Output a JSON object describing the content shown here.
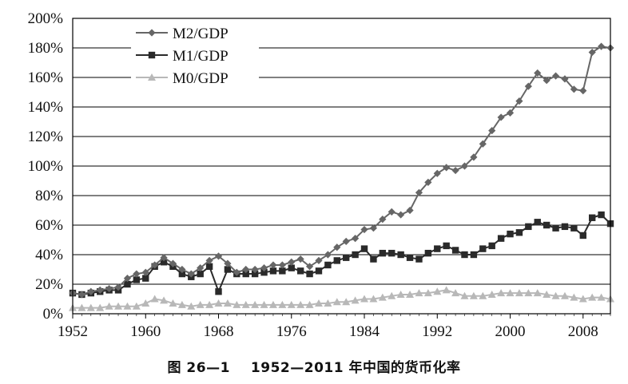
{
  "caption": {
    "label": "图 26—1",
    "text": "1952—2011 年中国的货币化率"
  },
  "colors": {
    "m2": "#666666",
    "m1": "#2a2a2a",
    "m0": "#b8b8b8",
    "grid": "#000000"
  },
  "chart_data": {
    "type": "line",
    "title": "",
    "xlabel": "",
    "ylabel": "",
    "ylim": [
      0,
      200
    ],
    "y_ticks": [
      0,
      20,
      40,
      60,
      80,
      100,
      120,
      140,
      160,
      180,
      200
    ],
    "y_tick_labels": [
      "0%",
      "20%",
      "40%",
      "60%",
      "80%",
      "100%",
      "120%",
      "140%",
      "160%",
      "180%",
      "200%"
    ],
    "xlim": [
      1952,
      2011
    ],
    "x_ticks": [
      1952,
      1960,
      1968,
      1976,
      1984,
      1992,
      2000,
      2008
    ],
    "x_tick_labels": [
      "1952",
      "1960",
      "1968",
      "1976",
      "1984",
      "1992",
      "2000",
      "2008"
    ],
    "grid": "horizontal",
    "legend_position": "top-left",
    "x": [
      1952,
      1953,
      1954,
      1955,
      1956,
      1957,
      1958,
      1959,
      1960,
      1961,
      1962,
      1963,
      1964,
      1965,
      1966,
      1967,
      1968,
      1969,
      1970,
      1971,
      1972,
      1973,
      1974,
      1975,
      1976,
      1977,
      1978,
      1979,
      1980,
      1981,
      1982,
      1983,
      1984,
      1985,
      1986,
      1987,
      1988,
      1989,
      1990,
      1991,
      1992,
      1993,
      1994,
      1995,
      1996,
      1997,
      1998,
      1999,
      2000,
      2001,
      2002,
      2003,
      2004,
      2005,
      2006,
      2007,
      2008,
      2009,
      2010,
      2011
    ],
    "series": [
      {
        "name": "M2/GDP",
        "marker": "diamond",
        "values": [
          14,
          13,
          15,
          16,
          17,
          18,
          24,
          27,
          28,
          33,
          38,
          34,
          30,
          27,
          31,
          36,
          39,
          34,
          28,
          30,
          30,
          31,
          33,
          33,
          35,
          37,
          32,
          36,
          40,
          45,
          49,
          51,
          57,
          58,
          64,
          69,
          67,
          70,
          82,
          89,
          95,
          99,
          97,
          100,
          106,
          115,
          124,
          133,
          136,
          144,
          154,
          163,
          158,
          161,
          159,
          152,
          151,
          177,
          181,
          180
        ]
      },
      {
        "name": "M1/GDP",
        "marker": "square",
        "values": [
          14,
          13,
          14,
          15,
          16,
          16,
          20,
          23,
          24,
          32,
          35,
          32,
          27,
          25,
          27,
          32,
          15,
          30,
          27,
          27,
          27,
          28,
          29,
          29,
          31,
          29,
          27,
          29,
          33,
          36,
          38,
          40,
          44,
          37,
          41,
          41,
          40,
          38,
          37,
          41,
          44,
          46,
          43,
          40,
          40,
          44,
          46,
          51,
          54,
          55,
          59,
          62,
          60,
          58,
          59,
          58,
          53,
          65,
          67,
          61
        ]
      },
      {
        "name": "M0/GDP",
        "marker": "triangle",
        "values": [
          4,
          4,
          4,
          4,
          5,
          5,
          5,
          5,
          7,
          10,
          9,
          7,
          6,
          5,
          6,
          6,
          7,
          7,
          6,
          6,
          6,
          6,
          6,
          6,
          6,
          6,
          6,
          7,
          7,
          8,
          8,
          9,
          10,
          10,
          11,
          12,
          13,
          13,
          14,
          14,
          15,
          16,
          14,
          12,
          12,
          12,
          13,
          14,
          14,
          14,
          14,
          14,
          13,
          12,
          12,
          11,
          10,
          11,
          11,
          10
        ]
      }
    ]
  }
}
